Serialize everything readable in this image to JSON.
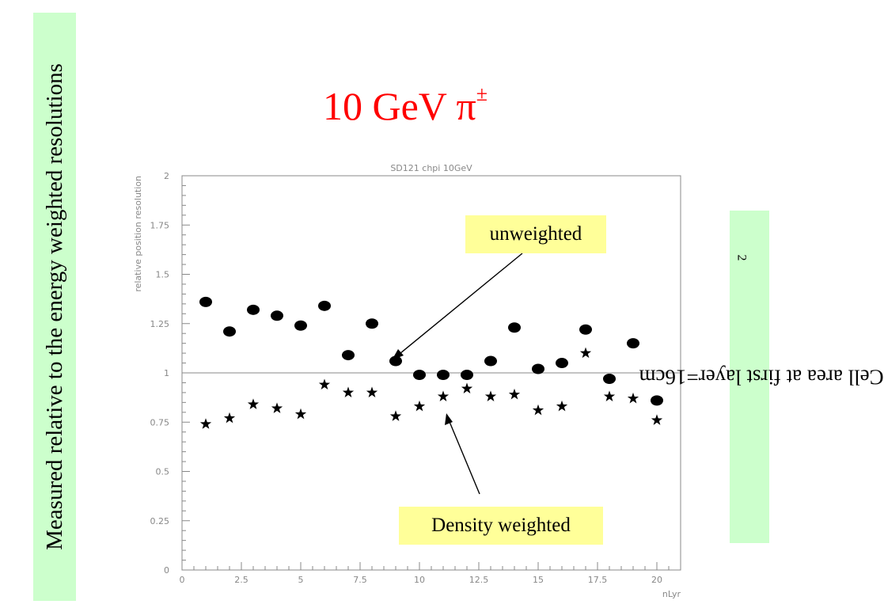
{
  "slide": {
    "title": "10 GeV π",
    "title_superscript": "±",
    "left_label": "Measured relative to the energy weighted resolutions",
    "right_label": "Cell area at first layer=16cm",
    "right_label_superscript": "2",
    "callout_unweighted": "unweighted",
    "callout_density": "Density weighted"
  },
  "colors": {
    "title": "#ff0000",
    "label_background": "#ccffcc",
    "callout_background": "#ffff99",
    "axis": "#888888",
    "markers": "#000000"
  },
  "chart_data": {
    "type": "scatter",
    "title": "SD121 chpi 10GeV",
    "xlabel": "nLyr",
    "ylabel": "relative position resolution",
    "xlim": [
      0,
      21
    ],
    "ylim": [
      0,
      2
    ],
    "x_ticks": [
      0,
      2.5,
      5,
      7.5,
      10,
      12.5,
      15,
      17.5,
      20
    ],
    "x_tick_labels": [
      "0",
      "2.5",
      "5",
      "7.5",
      "10",
      "12.5",
      "15",
      "17.5",
      "20"
    ],
    "y_ticks": [
      0,
      0.25,
      0.5,
      0.75,
      1,
      1.25,
      1.5,
      1.75,
      2
    ],
    "y_tick_labels": [
      "0",
      "0.25",
      "0.5",
      "0.75",
      "1",
      "1.25",
      "1.5",
      "1.75",
      "2"
    ],
    "reference_line": 1,
    "series": [
      {
        "marker": "circle",
        "x": [
          1,
          2,
          3,
          4,
          5,
          6,
          7,
          8,
          9,
          10,
          11,
          12,
          13,
          14,
          15,
          16,
          17,
          18,
          19,
          20
        ],
        "y": [
          1.36,
          1.21,
          1.32,
          1.29,
          1.24,
          1.34,
          1.09,
          1.25,
          1.06,
          0.99,
          0.99,
          0.99,
          1.06,
          1.23,
          1.02,
          1.05,
          1.22,
          0.97,
          1.15,
          0.86
        ]
      },
      {
        "marker": "star",
        "x": [
          1,
          2,
          3,
          4,
          5,
          6,
          7,
          8,
          9,
          10,
          11,
          12,
          13,
          14,
          15,
          16,
          17,
          18,
          19,
          20
        ],
        "y": [
          0.74,
          0.77,
          0.84,
          0.82,
          0.79,
          0.94,
          0.9,
          0.9,
          0.78,
          0.83,
          0.88,
          0.92,
          0.88,
          0.89,
          0.81,
          0.83,
          1.1,
          0.88,
          0.87,
          0.76
        ]
      }
    ]
  }
}
